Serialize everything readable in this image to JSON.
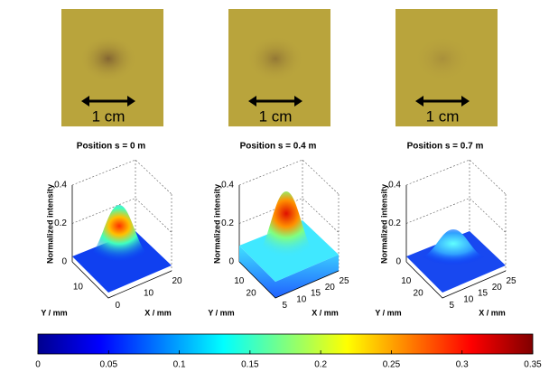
{
  "panels": [
    {
      "scale_label": "1 cm",
      "title": "Position s = 0 m",
      "z_label": "Normalized intensity",
      "z_ticks": [
        "0",
        "0.2",
        "0.4"
      ],
      "y_label": "Y / mm",
      "y_ticks": [
        "10"
      ],
      "x_label": "X / mm",
      "x_ticks": [
        "0",
        "10",
        "20"
      ]
    },
    {
      "scale_label": "1 cm",
      "title": "Position s = 0.4 m",
      "z_label": "Normalized intensity",
      "z_ticks": [
        "0",
        "0.2",
        "0.4"
      ],
      "y_label": "Y / mm",
      "y_ticks": [
        "10",
        "20"
      ],
      "x_label": "X / mm",
      "x_ticks": [
        "5",
        "10",
        "15",
        "20",
        "25"
      ]
    },
    {
      "scale_label": "1 cm",
      "title": "Position s = 0.7 m",
      "z_label": "Normalized intensity",
      "z_ticks": [
        "0",
        "0.2",
        "0.4"
      ],
      "y_label": "Y / mm",
      "y_ticks": [
        "10",
        "20"
      ],
      "x_label": "X / mm",
      "x_ticks": [
        "5",
        "10",
        "15",
        "20",
        "25"
      ]
    }
  ],
  "colorbar": {
    "ticks": [
      "0",
      "0.05",
      "0.1",
      "0.15",
      "0.2",
      "0.25",
      "0.3",
      "0.35"
    ]
  }
}
